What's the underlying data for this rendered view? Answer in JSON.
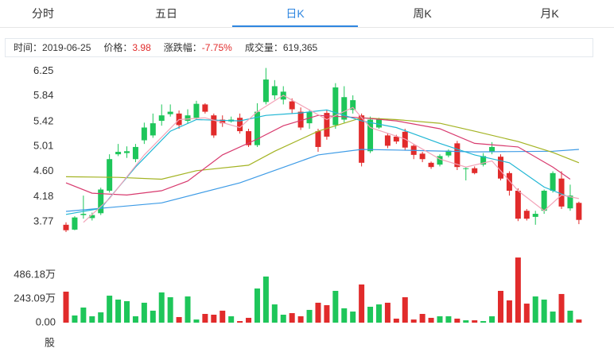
{
  "tabs": [
    "分时",
    "五日",
    "日K",
    "周K",
    "月K"
  ],
  "active_tab": 2,
  "info": [
    {
      "label": "时间：",
      "value": "2019-06-25"
    },
    {
      "label": "价格：",
      "value": "3.98"
    },
    {
      "label": "涨跌幅：",
      "value": "-7.75%"
    },
    {
      "label": "成交量：",
      "value": "619,365"
    }
  ],
  "chart_data": {
    "type": "candlestick",
    "up_color": "#1ec65a",
    "down_color": "#e12b2b",
    "open": [
      3.72,
      3.64,
      3.88,
      3.83,
      3.91,
      4.28,
      4.88,
      4.9,
      4.8,
      5.11,
      5.19,
      5.43,
      5.54,
      5.55,
      5.43,
      5.48,
      5.7,
      5.52,
      5.45,
      5.42,
      5.48,
      5.26,
      5.03,
      5.74,
      5.85,
      5.78,
      5.75,
      5.58,
      5.39,
      5.26,
      5.56,
      5.36,
      5.45,
      5.61,
      5.52,
      4.93,
      5.32,
      5.19,
      5.17,
      5.25,
      5.02,
      4.89,
      4.74,
      4.71,
      4.86,
      5.06,
      4.64,
      4.65,
      4.71,
      4.92,
      4.84,
      4.57,
      4.28,
      3.95,
      3.85,
      3.95,
      4.28,
      4.48,
      3.99,
      4.08
    ],
    "high": [
      3.76,
      3.86,
      4.2,
      3.92,
      4.33,
      4.88,
      5.05,
      5.01,
      5.05,
      5.4,
      5.55,
      5.7,
      5.7,
      5.6,
      5.62,
      5.76,
      5.72,
      5.55,
      5.52,
      5.5,
      5.55,
      5.3,
      5.72,
      6.3,
      6.1,
      6.0,
      5.8,
      5.65,
      5.62,
      5.3,
      5.6,
      6.05,
      6.0,
      5.85,
      5.55,
      5.5,
      5.48,
      5.22,
      5.2,
      5.3,
      5.05,
      4.92,
      4.76,
      4.88,
      4.96,
      5.1,
      4.67,
      4.68,
      4.9,
      5.08,
      4.88,
      4.6,
      4.32,
      3.98,
      3.95,
      4.3,
      4.6,
      4.6,
      4.38,
      4.1
    ],
    "low": [
      3.6,
      3.63,
      3.82,
      3.79,
      3.88,
      4.25,
      4.85,
      4.82,
      4.75,
      5.05,
      5.15,
      5.35,
      5.5,
      5.3,
      5.38,
      5.45,
      5.55,
      5.15,
      5.33,
      5.4,
      5.22,
      5.0,
      5.0,
      5.7,
      5.78,
      5.7,
      5.55,
      5.28,
      5.3,
      4.92,
      5.12,
      5.3,
      5.4,
      5.55,
      4.68,
      4.9,
      5.3,
      4.98,
      5.05,
      4.95,
      4.8,
      4.75,
      4.64,
      4.68,
      4.83,
      4.62,
      4.45,
      4.55,
      4.68,
      4.88,
      4.45,
      4.2,
      3.78,
      3.79,
      3.72,
      3.9,
      4.25,
      3.98,
      3.95,
      3.73
    ],
    "close": [
      3.63,
      3.84,
      3.9,
      3.88,
      4.3,
      4.8,
      4.92,
      4.93,
      5.0,
      5.32,
      5.39,
      5.52,
      5.58,
      5.36,
      5.52,
      5.71,
      5.58,
      5.19,
      5.39,
      5.45,
      5.26,
      5.03,
      5.58,
      6.11,
      6.0,
      5.91,
      5.62,
      5.32,
      5.58,
      5.0,
      5.17,
      5.98,
      5.82,
      5.77,
      4.74,
      5.45,
      5.45,
      5.02,
      5.09,
      4.99,
      4.87,
      4.8,
      4.67,
      4.85,
      4.94,
      4.67,
      4.65,
      4.57,
      4.85,
      5.0,
      4.48,
      4.28,
      3.82,
      3.82,
      3.9,
      4.28,
      4.57,
      4.02,
      4.2,
      3.8
    ],
    "volume": [
      316,
      73,
      154,
      65,
      105,
      275,
      235,
      219,
      65,
      203,
      122,
      308,
      259,
      57,
      267,
      32,
      89,
      81,
      122,
      65,
      16,
      49,
      348,
      470,
      186,
      81,
      97,
      65,
      130,
      203,
      178,
      324,
      146,
      113,
      389,
      162,
      186,
      203,
      41,
      259,
      32,
      89,
      49,
      65,
      65,
      41,
      24,
      24,
      16,
      65,
      324,
      227,
      664,
      194,
      267,
      235,
      113,
      292,
      122,
      32
    ],
    "ma_lines": [
      {
        "color": "#3d9be6",
        "x": [
          0,
          11,
          20,
          29,
          34,
          38,
          47,
          56,
          59
        ],
        "values": [
          3.94,
          4.08,
          4.41,
          4.87,
          4.96,
          4.95,
          4.92,
          4.93,
          4.96
        ]
      },
      {
        "color": "#a3b322",
        "x": [
          0,
          6,
          11,
          15,
          21,
          24,
          29,
          34,
          38,
          43,
          47,
          52,
          56,
          59
        ],
        "values": [
          4.51,
          4.5,
          4.47,
          4.61,
          4.7,
          4.93,
          5.26,
          5.48,
          5.45,
          5.39,
          5.26,
          5.09,
          4.91,
          4.74
        ]
      },
      {
        "color": "#d83a6e",
        "x": [
          0,
          3,
          7,
          11,
          14,
          18,
          22,
          25,
          29,
          34,
          38,
          43,
          47,
          52,
          56,
          58
        ],
        "values": [
          4.41,
          4.24,
          4.21,
          4.28,
          4.44,
          4.87,
          5.13,
          5.35,
          5.52,
          5.48,
          5.43,
          5.3,
          5.06,
          5.0,
          4.67,
          4.47
        ]
      },
      {
        "color": "#1fb6d4",
        "x": [
          0,
          4,
          8,
          12,
          15,
          20,
          23,
          27,
          30,
          34,
          38,
          43,
          47,
          51,
          55,
          58
        ],
        "values": [
          3.89,
          3.99,
          4.67,
          5.26,
          5.45,
          5.43,
          5.52,
          5.56,
          5.61,
          5.43,
          5.32,
          5.06,
          4.87,
          4.74,
          4.34,
          4.17
        ]
      },
      {
        "color": "#f3a3b8",
        "x": [
          2,
          5,
          9,
          13,
          16,
          20,
          22,
          25,
          27,
          30,
          33,
          35,
          39,
          43,
          46,
          49,
          52,
          55,
          57,
          59
        ],
        "values": [
          3.76,
          4.15,
          4.87,
          5.45,
          5.48,
          5.32,
          5.58,
          5.85,
          5.69,
          5.45,
          5.65,
          5.32,
          5.13,
          4.8,
          4.67,
          4.77,
          4.28,
          3.95,
          4.21,
          4.15
        ]
      }
    ],
    "ylim": [
      3.6,
      6.32
    ],
    "yticks": [
      6.25,
      5.84,
      5.42,
      5.01,
      {
        "value": 4.6,
        "label": "4.60"
      },
      4.18,
      3.77
    ],
    "volume_ylim": [
      0,
      729
    ],
    "volume_yticks": [
      {
        "value": 486.18,
        "label": "486.18万"
      },
      {
        "value": 243.09,
        "label": "243.09万"
      },
      {
        "value": 0,
        "label": "0.00"
      }
    ],
    "volume_unit": "股"
  }
}
